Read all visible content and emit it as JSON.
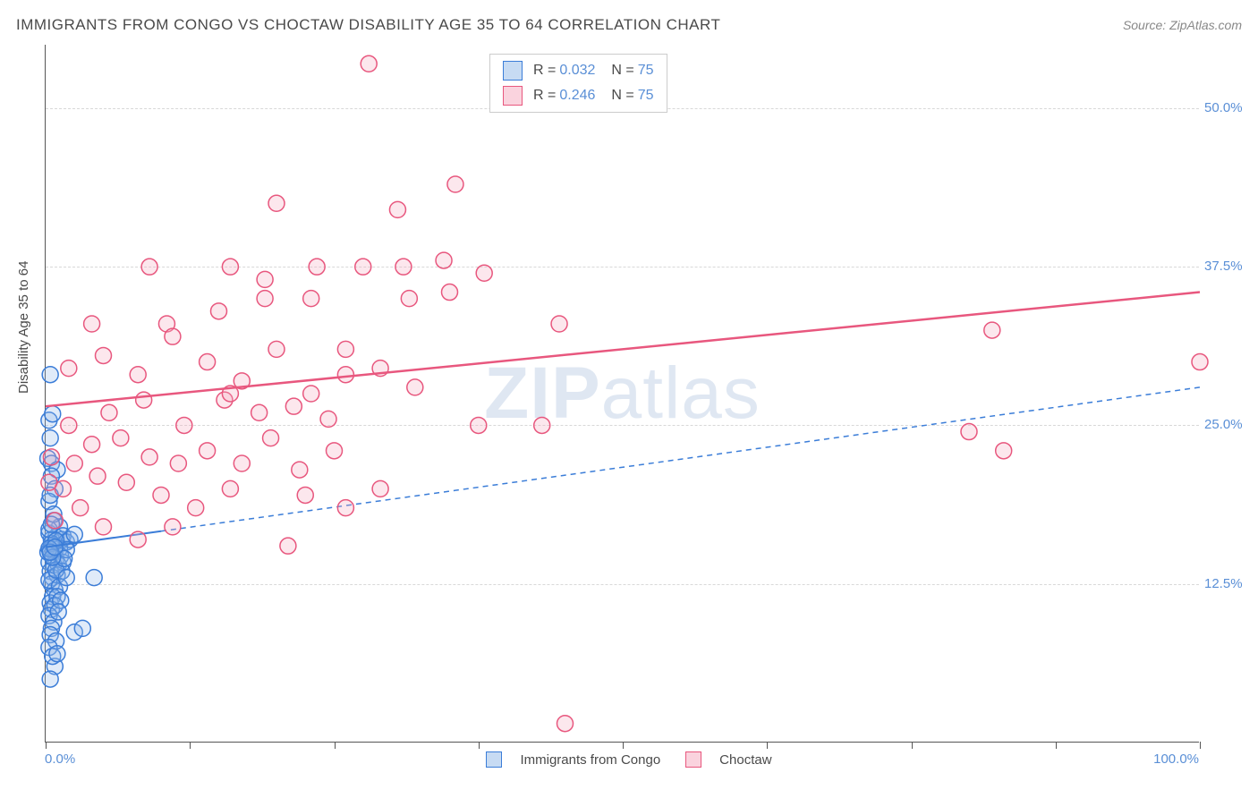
{
  "header": {
    "title": "IMMIGRANTS FROM CONGO VS CHOCTAW DISABILITY AGE 35 TO 64 CORRELATION CHART",
    "source": "Source: ZipAtlas.com"
  },
  "chart": {
    "type": "scatter",
    "ylabel": "Disability Age 35 to 64",
    "xlim": [
      0,
      100
    ],
    "ylim": [
      0,
      55
    ],
    "x_tick_positions": [
      0,
      12.5,
      25,
      37.5,
      50,
      62.5,
      75,
      87.5,
      100
    ],
    "x_axis_labels": {
      "left": "0.0%",
      "right": "100.0%"
    },
    "y_gridlines": [
      12.5,
      25.0,
      37.5,
      50.0
    ],
    "y_tick_labels": [
      "12.5%",
      "25.0%",
      "37.5%",
      "50.0%"
    ],
    "background_color": "#ffffff",
    "grid_color": "#d8d8d8",
    "axis_color": "#555555",
    "marker_radius": 9,
    "marker_stroke_width": 1.5,
    "marker_fill_opacity": 0.28,
    "series": [
      {
        "name": "Immigrants from Congo",
        "color_stroke": "#3b7dd8",
        "color_fill": "#8fb8e8",
        "r_value": "0.032",
        "n_value": "75",
        "trend": {
          "x1": 0,
          "y1": 15.4,
          "x2": 100,
          "y2": 28.0,
          "solid_to_x": 10,
          "dash": "6,5",
          "width": 2
        },
        "points": [
          [
            0.4,
            29.0
          ],
          [
            0.3,
            25.4
          ],
          [
            0.6,
            25.9
          ],
          [
            0.4,
            24.0
          ],
          [
            0.2,
            22.4
          ],
          [
            0.5,
            22.0
          ],
          [
            1.0,
            21.5
          ],
          [
            0.5,
            21.0
          ],
          [
            0.8,
            20.0
          ],
          [
            0.3,
            19.0
          ],
          [
            0.7,
            17.5
          ],
          [
            1.2,
            17.0
          ],
          [
            0.3,
            16.5
          ],
          [
            0.9,
            16.2
          ],
          [
            0.5,
            16.0
          ],
          [
            1.4,
            16.0
          ],
          [
            0.6,
            15.5
          ],
          [
            1.0,
            15.5
          ],
          [
            0.4,
            15.2
          ],
          [
            0.8,
            15.0
          ],
          [
            1.5,
            16.3
          ],
          [
            1.8,
            15.8
          ],
          [
            2.1,
            16.0
          ],
          [
            1.2,
            15.3
          ],
          [
            0.5,
            14.8
          ],
          [
            0.9,
            14.5
          ],
          [
            1.3,
            14.7
          ],
          [
            0.3,
            14.2
          ],
          [
            0.7,
            14.0
          ],
          [
            1.1,
            14.0
          ],
          [
            0.4,
            13.5
          ],
          [
            1.5,
            14.2
          ],
          [
            0.6,
            13.0
          ],
          [
            1.0,
            13.2
          ],
          [
            1.8,
            15.2
          ],
          [
            2.5,
            16.4
          ],
          [
            0.5,
            12.5
          ],
          [
            1.4,
            13.5
          ],
          [
            0.8,
            12.0
          ],
          [
            0.3,
            12.8
          ],
          [
            1.2,
            12.3
          ],
          [
            0.6,
            11.5
          ],
          [
            0.9,
            13.6
          ],
          [
            1.6,
            14.5
          ],
          [
            0.4,
            11.0
          ],
          [
            1.0,
            11.5
          ],
          [
            1.8,
            13.0
          ],
          [
            4.2,
            13.0
          ],
          [
            0.5,
            10.5
          ],
          [
            0.8,
            10.8
          ],
          [
            1.3,
            11.2
          ],
          [
            0.3,
            10.0
          ],
          [
            0.7,
            9.5
          ],
          [
            1.1,
            10.3
          ],
          [
            0.5,
            9.0
          ],
          [
            2.5,
            8.7
          ],
          [
            0.4,
            8.5
          ],
          [
            0.9,
            8.0
          ],
          [
            0.3,
            7.5
          ],
          [
            0.8,
            6.0
          ],
          [
            3.2,
            9.0
          ],
          [
            0.4,
            5.0
          ],
          [
            0.6,
            6.8
          ],
          [
            1.0,
            7.0
          ],
          [
            0.2,
            15.0
          ],
          [
            0.5,
            15.7
          ],
          [
            0.3,
            16.8
          ],
          [
            0.7,
            18.0
          ],
          [
            0.4,
            19.5
          ],
          [
            0.5,
            17.2
          ],
          [
            0.9,
            15.9
          ],
          [
            0.3,
            15.3
          ],
          [
            0.6,
            14.6
          ],
          [
            0.4,
            15.0
          ],
          [
            0.8,
            15.4
          ]
        ]
      },
      {
        "name": "Choctaw",
        "color_stroke": "#e8577e",
        "color_fill": "#f5a8bd",
        "r_value": "0.246",
        "n_value": "75",
        "trend": {
          "x1": 0,
          "y1": 26.5,
          "x2": 100,
          "y2": 35.5,
          "solid_to_x": 100,
          "dash": "",
          "width": 2.5
        },
        "points": [
          [
            28.0,
            53.5
          ],
          [
            35.5,
            44.0
          ],
          [
            20.0,
            42.5
          ],
          [
            30.5,
            42.0
          ],
          [
            9.0,
            37.5
          ],
          [
            16.0,
            37.5
          ],
          [
            19.0,
            36.5
          ],
          [
            23.5,
            37.5
          ],
          [
            27.5,
            37.5
          ],
          [
            31.0,
            37.5
          ],
          [
            34.5,
            38.0
          ],
          [
            38.0,
            37.0
          ],
          [
            4.0,
            33.0
          ],
          [
            10.5,
            33.0
          ],
          [
            15.0,
            34.0
          ],
          [
            19.0,
            35.0
          ],
          [
            23.0,
            35.0
          ],
          [
            26.0,
            29.0
          ],
          [
            31.5,
            35.0
          ],
          [
            35.0,
            35.5
          ],
          [
            82.0,
            32.5
          ],
          [
            44.5,
            33.0
          ],
          [
            2.0,
            29.5
          ],
          [
            5.0,
            30.5
          ],
          [
            8.0,
            29.0
          ],
          [
            11.0,
            32.0
          ],
          [
            14.0,
            30.0
          ],
          [
            17.0,
            28.5
          ],
          [
            20.0,
            31.0
          ],
          [
            23.0,
            27.5
          ],
          [
            26.0,
            31.0
          ],
          [
            29.0,
            29.5
          ],
          [
            32.0,
            28.0
          ],
          [
            100.0,
            30.0
          ],
          [
            5.5,
            26.0
          ],
          [
            8.5,
            27.0
          ],
          [
            12.0,
            25.0
          ],
          [
            15.5,
            27.0
          ],
          [
            18.5,
            26.0
          ],
          [
            21.5,
            26.5
          ],
          [
            24.5,
            25.5
          ],
          [
            16.0,
            27.5
          ],
          [
            37.5,
            25.0
          ],
          [
            43.0,
            25.0
          ],
          [
            80.0,
            24.5
          ],
          [
            83.0,
            23.0
          ],
          [
            2.0,
            25.0
          ],
          [
            4.0,
            23.5
          ],
          [
            6.5,
            24.0
          ],
          [
            9.0,
            22.5
          ],
          [
            11.5,
            22.0
          ],
          [
            14.0,
            23.0
          ],
          [
            17.0,
            22.0
          ],
          [
            19.5,
            24.0
          ],
          [
            22.0,
            21.5
          ],
          [
            25.0,
            23.0
          ],
          [
            0.5,
            22.5
          ],
          [
            2.5,
            22.0
          ],
          [
            0.3,
            20.5
          ],
          [
            4.5,
            21.0
          ],
          [
            7.0,
            20.5
          ],
          [
            1.5,
            20.0
          ],
          [
            10.0,
            19.5
          ],
          [
            13.0,
            18.5
          ],
          [
            16.0,
            20.0
          ],
          [
            22.5,
            19.5
          ],
          [
            3.0,
            18.5
          ],
          [
            26.0,
            18.5
          ],
          [
            29.0,
            20.0
          ],
          [
            0.8,
            17.5
          ],
          [
            5.0,
            17.0
          ],
          [
            8.0,
            16.0
          ],
          [
            11.0,
            17.0
          ],
          [
            21.0,
            15.5
          ],
          [
            45.0,
            1.5
          ]
        ]
      }
    ],
    "watermark": {
      "text_prefix": "ZIP",
      "text_suffix": "atlas"
    }
  },
  "legend_bottom": [
    {
      "label": "Immigrants from Congo",
      "stroke": "#3b7dd8",
      "fill": "#8fb8e8"
    },
    {
      "label": "Choctaw",
      "stroke": "#e8577e",
      "fill": "#f5a8bd"
    }
  ]
}
